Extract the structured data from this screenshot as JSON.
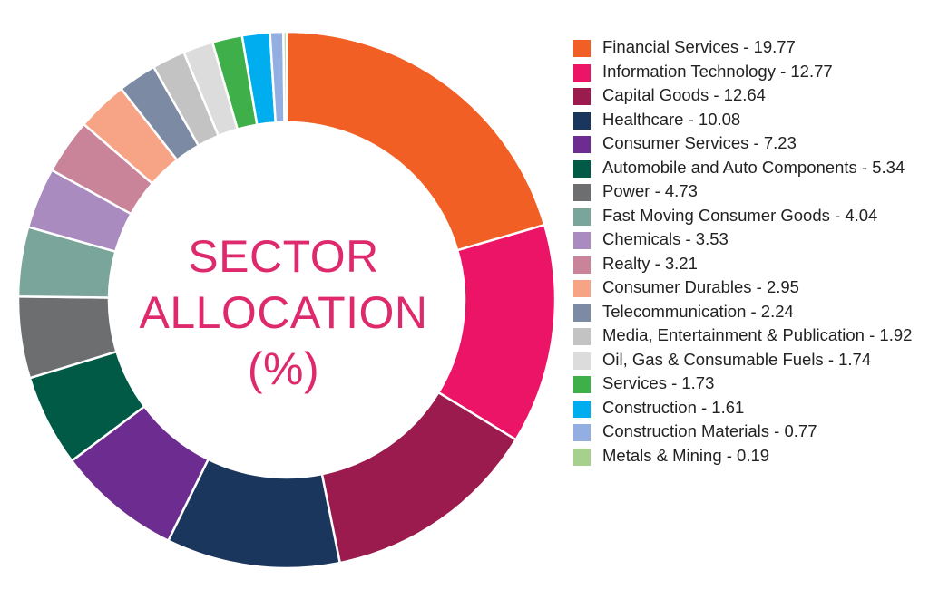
{
  "chart_data": {
    "type": "pie",
    "style": "donut",
    "center_title_lines": [
      "SECTOR",
      "ALLOCATION",
      "(%)"
    ],
    "legend_position": "right",
    "slices": [
      {
        "name": "Financial Services",
        "value": 19.77,
        "label": "Financial Services - 19.77",
        "color": "#f15f25"
      },
      {
        "name": "Information Technology",
        "value": 12.77,
        "label": "Information Technology - 12.77",
        "color": "#ec1466"
      },
      {
        "name": "Capital Goods",
        "value": 12.64,
        "label": "Capital Goods - 12.64",
        "color": "#9b1b4e"
      },
      {
        "name": "Healthcare",
        "value": 10.08,
        "label": "Healthcare - 10.08",
        "color": "#1b365d"
      },
      {
        "name": "Consumer Services",
        "value": 7.23,
        "label": "Consumer Services - 7.23",
        "color": "#6d2c8f"
      },
      {
        "name": "Automobile and Auto Components",
        "value": 5.34,
        "label": "Automobile and Auto Components - 5.34",
        "color": "#005a46"
      },
      {
        "name": "Power",
        "value": 4.73,
        "label": "Power - 4.73",
        "color": "#6d6e70"
      },
      {
        "name": "Fast Moving Consumer Goods",
        "value": 4.04,
        "label": "Fast Moving Consumer Goods - 4.04",
        "color": "#7aa59b"
      },
      {
        "name": "Chemicals",
        "value": 3.53,
        "label": "Chemicals - 3.53",
        "color": "#a98bc0"
      },
      {
        "name": "Realty",
        "value": 3.21,
        "label": "Realty - 3.21",
        "color": "#c9849a"
      },
      {
        "name": "Consumer Durables",
        "value": 2.95,
        "label": "Consumer Durables - 2.95",
        "color": "#f6a386"
      },
      {
        "name": "Telecommunication",
        "value": 2.24,
        "label": "Telecommunication - 2.24",
        "color": "#7c8aa3"
      },
      {
        "name": "Media, Entertainment & Publication",
        "value": 1.92,
        "label": "Media, Entertainment & Publication - 1.92",
        "color": "#c3c3c3"
      },
      {
        "name": "Oil, Gas & Consumable Fuels",
        "value": 1.74,
        "label": "Oil, Gas & Consumable Fuels - 1.74",
        "color": "#dcdcdc"
      },
      {
        "name": "Services",
        "value": 1.73,
        "label": "Services - 1.73",
        "color": "#3fb049"
      },
      {
        "name": "Construction",
        "value": 1.61,
        "label": "Construction - 1.61",
        "color": "#00aeef"
      },
      {
        "name": "Construction Materials",
        "value": 0.77,
        "label": "Construction Materials - 0.77",
        "color": "#93aee0"
      },
      {
        "name": "Metals & Mining",
        "value": 0.19,
        "label": "Metals & Mining - 0.19",
        "color": "#a8d08d"
      }
    ]
  }
}
